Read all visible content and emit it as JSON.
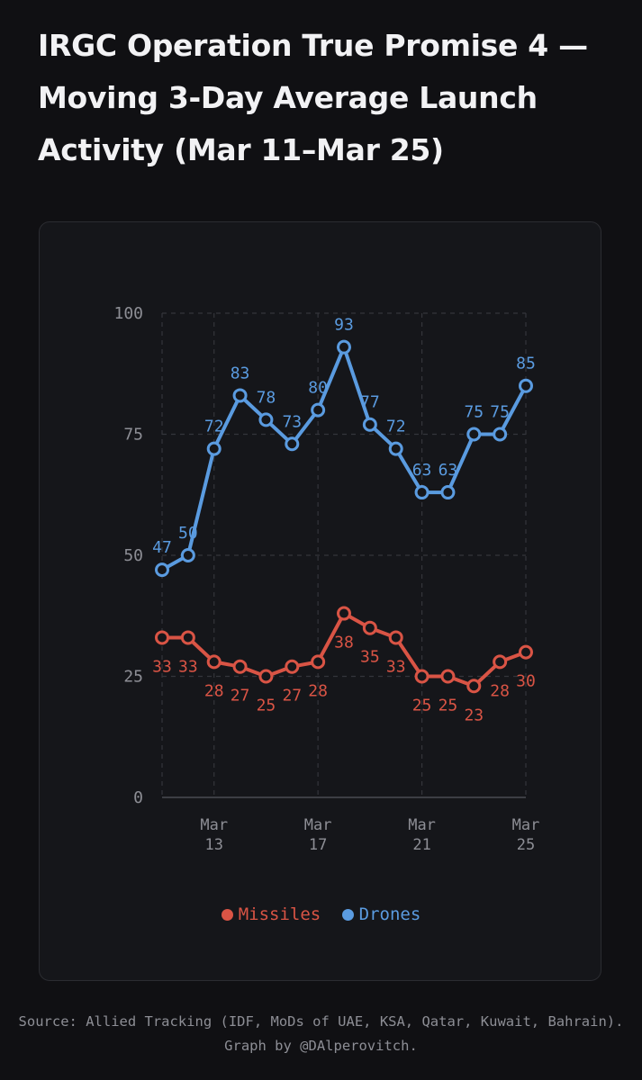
{
  "title": "IRGC Operation True Promise 4 — Moving 3-Day Average Launch Activity (Mar 11–Mar 25)",
  "source": "Source: Allied Tracking (IDF, MoDs of UAE, KSA, Qatar, Kuwait, Bahrain). Graph by @DAlperovitch.",
  "colors": {
    "background": "#101013",
    "card": "#15161a",
    "missiles": "#d95445",
    "drones": "#5a9be0",
    "grid": "#34353b",
    "tick_text": "#8d8e95"
  },
  "chart_data": {
    "type": "line",
    "x": [
      11,
      12,
      13,
      14,
      15,
      16,
      17,
      18,
      19,
      20,
      21,
      22,
      23,
      24,
      25
    ],
    "x_ticks": [
      {
        "value": 13,
        "line1": "Mar",
        "line2": "13"
      },
      {
        "value": 17,
        "line1": "Mar",
        "line2": "17"
      },
      {
        "value": 21,
        "line1": "Mar",
        "line2": "21"
      },
      {
        "value": 25,
        "line1": "Mar",
        "line2": "25"
      }
    ],
    "y_ticks": [
      0,
      25,
      50,
      75,
      100
    ],
    "ylim": [
      0,
      100
    ],
    "xlim": [
      11,
      25
    ],
    "grid": true,
    "legend_position": "bottom-center",
    "series": [
      {
        "name": "Missiles",
        "key": "missiles",
        "values": [
          33,
          33,
          28,
          27,
          25,
          27,
          28,
          38,
          35,
          33,
          25,
          25,
          23,
          28,
          30
        ],
        "label_position": "below"
      },
      {
        "name": "Drones",
        "key": "drones",
        "values": [
          47,
          50,
          72,
          83,
          78,
          73,
          80,
          93,
          77,
          72,
          63,
          63,
          75,
          75,
          85
        ],
        "label_position": "above"
      }
    ]
  }
}
